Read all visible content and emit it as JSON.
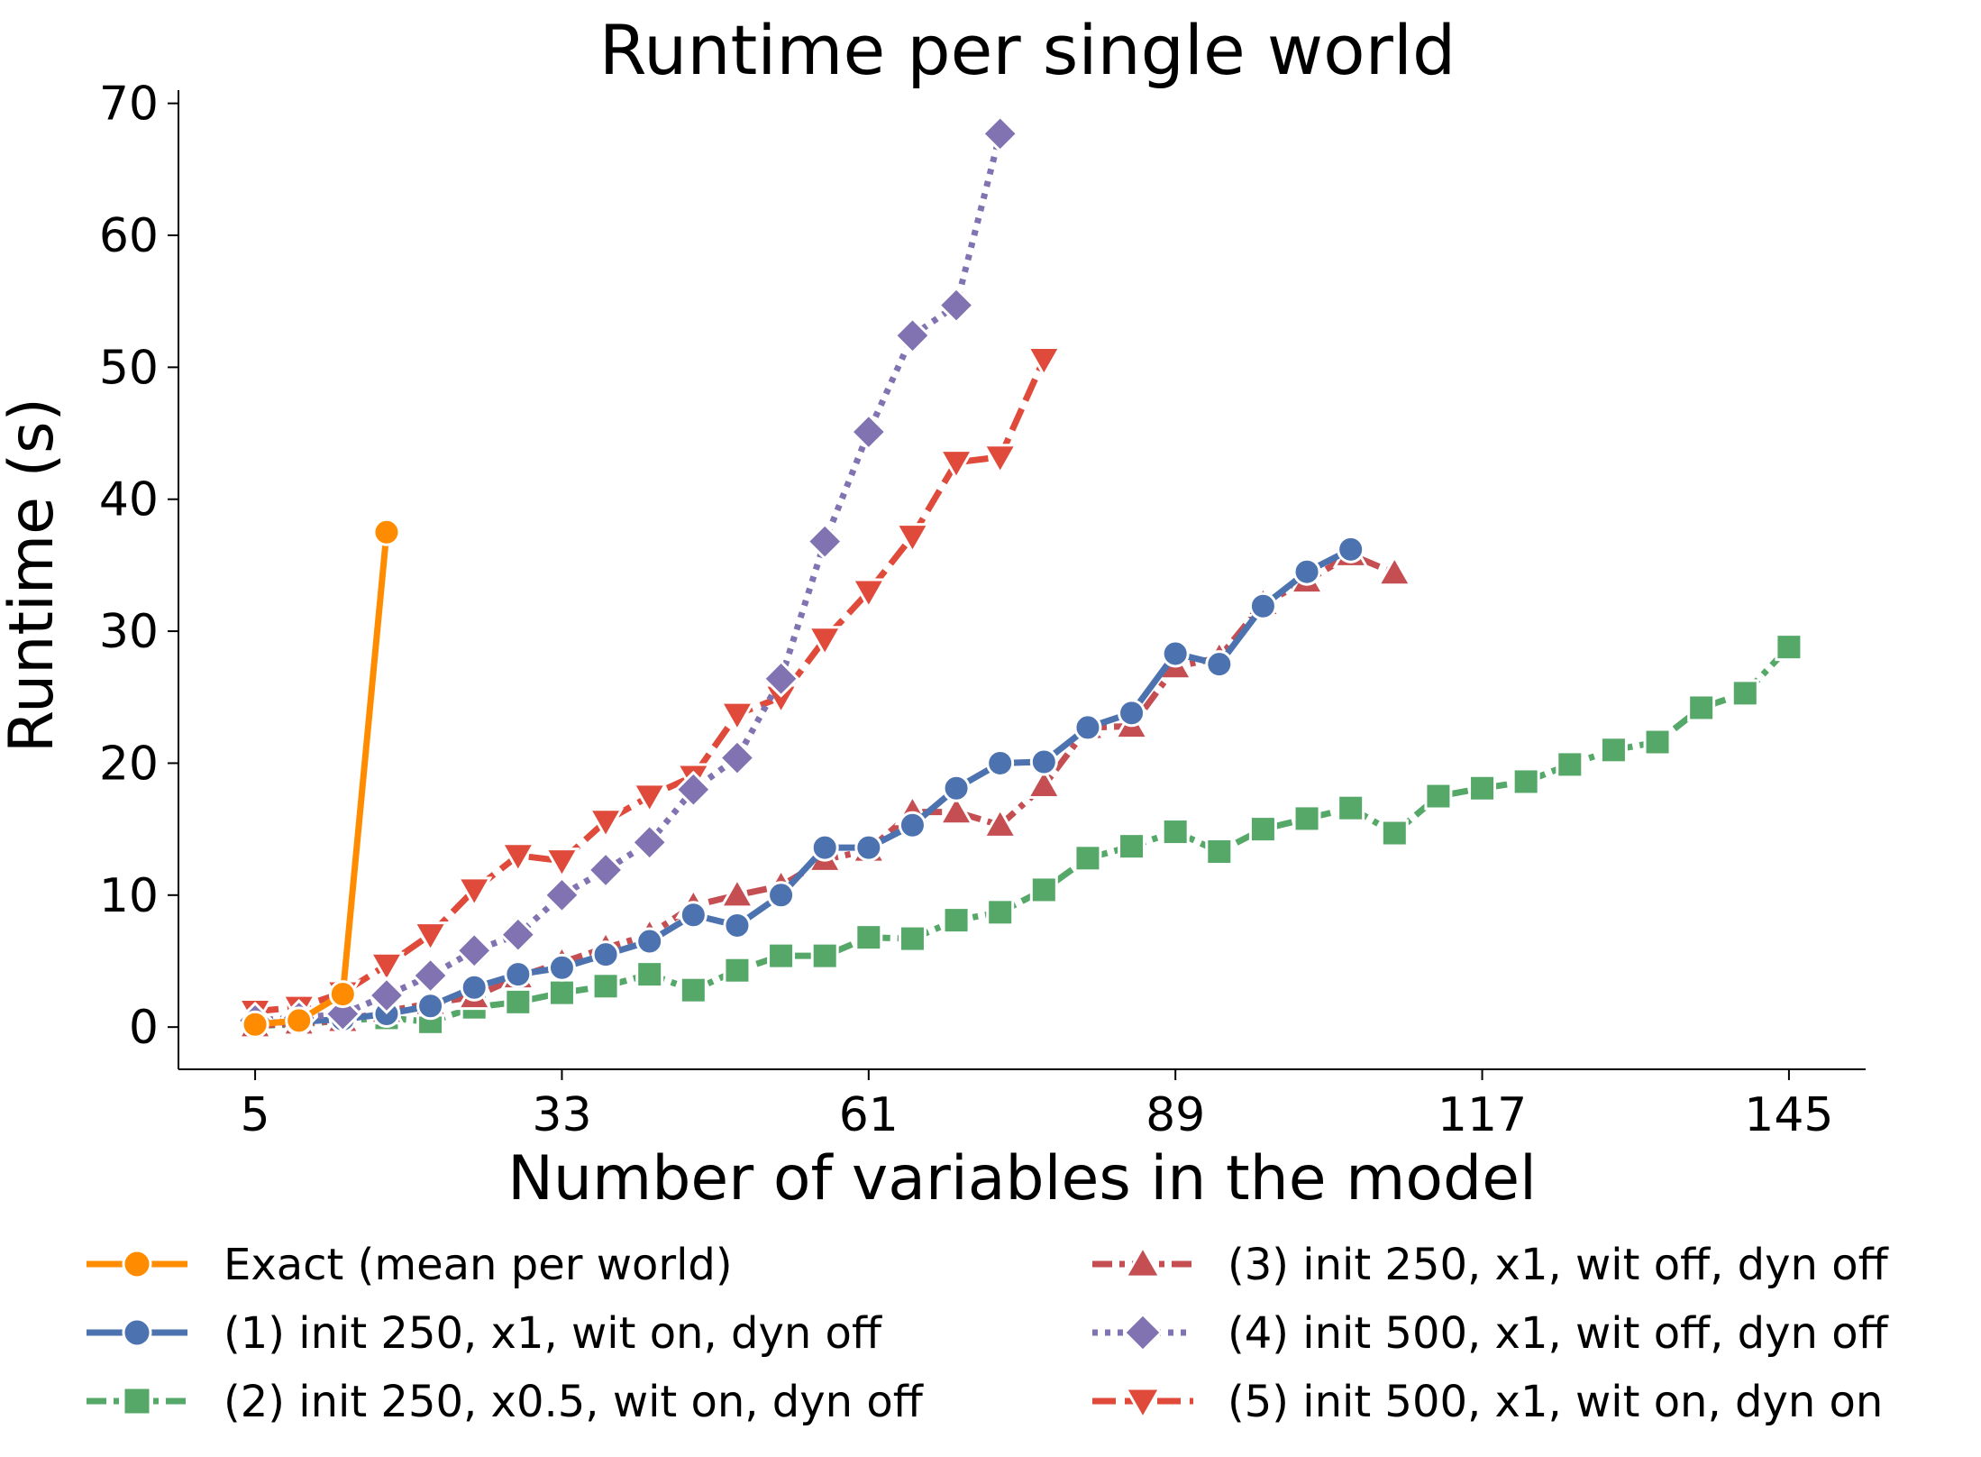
{
  "chart_data": {
    "type": "line",
    "title": "Runtime per single world",
    "xlabel": "Number of variables in the model",
    "ylabel": "Runtime (s)",
    "xticks": [
      "5",
      "33",
      "61",
      "89",
      "117",
      "145"
    ],
    "yticks": [
      "0",
      "10",
      "20",
      "30",
      "40",
      "50",
      "60",
      "70"
    ],
    "xlim": [
      -2,
      152
    ],
    "ylim": [
      -3.2,
      71
    ],
    "legend_placement": "below",
    "series": [
      {
        "name": "Exact (mean per world)",
        "color": "#ff8c00",
        "marker": "circle",
        "dash": "solid",
        "points": [
          [
            5,
            0.2
          ],
          [
            9,
            0.5
          ],
          [
            13,
            2.5
          ],
          [
            17,
            37.5
          ]
        ]
      },
      {
        "name": "(1) init 250, x1, wit on, dyn off",
        "color": "#4c72b0",
        "marker": "circle",
        "dash": "solid",
        "points": [
          [
            5,
            0.3
          ],
          [
            9,
            0.4
          ],
          [
            13,
            0.6
          ],
          [
            17,
            1.0
          ],
          [
            21,
            1.6
          ],
          [
            25,
            3.0
          ],
          [
            29,
            4.0
          ],
          [
            33,
            4.5
          ],
          [
            37,
            5.5
          ],
          [
            41,
            6.5
          ],
          [
            45,
            8.5
          ],
          [
            49,
            7.7
          ],
          [
            53,
            10.0
          ],
          [
            57,
            13.6
          ],
          [
            61,
            13.6
          ],
          [
            65,
            15.3
          ],
          [
            69,
            18.1
          ],
          [
            73,
            20.0
          ],
          [
            77,
            20.1
          ],
          [
            81,
            22.7
          ],
          [
            85,
            23.8
          ],
          [
            89,
            28.3
          ],
          [
            93,
            27.5
          ],
          [
            97,
            31.9
          ],
          [
            101,
            34.5
          ],
          [
            105,
            36.2
          ]
        ]
      },
      {
        "name": "(2) init 250, x0.5, wit on, dyn off",
        "color": "#55a868",
        "marker": "square",
        "dash": "dashdot",
        "points": [
          [
            5,
            0.1
          ],
          [
            9,
            0.2
          ],
          [
            13,
            0.5
          ],
          [
            17,
            0.7
          ],
          [
            21,
            0.4
          ],
          [
            25,
            1.5
          ],
          [
            29,
            1.9
          ],
          [
            33,
            2.6
          ],
          [
            37,
            3.1
          ],
          [
            41,
            4.0
          ],
          [
            45,
            2.8
          ],
          [
            49,
            4.3
          ],
          [
            53,
            5.4
          ],
          [
            57,
            5.4
          ],
          [
            61,
            6.8
          ],
          [
            65,
            6.7
          ],
          [
            69,
            8.1
          ],
          [
            73,
            8.7
          ],
          [
            77,
            10.4
          ],
          [
            81,
            12.8
          ],
          [
            85,
            13.7
          ],
          [
            89,
            14.8
          ],
          [
            93,
            13.3
          ],
          [
            97,
            15.0
          ],
          [
            101,
            15.8
          ],
          [
            105,
            16.6
          ],
          [
            109,
            14.7
          ],
          [
            113,
            17.5
          ],
          [
            117,
            18.1
          ],
          [
            121,
            18.6
          ],
          [
            125,
            19.9
          ],
          [
            129,
            21.0
          ],
          [
            133,
            21.6
          ],
          [
            137,
            24.2
          ],
          [
            141,
            25.3
          ],
          [
            145,
            28.8
          ]
        ]
      },
      {
        "name": "(3) init 250, x1, wit off, dyn off",
        "color": "#c44e52",
        "marker": "triangle-up",
        "dash": "dashdot",
        "points": [
          [
            5,
            0.1
          ],
          [
            9,
            0.3
          ],
          [
            13,
            0.5
          ],
          [
            17,
            1.2
          ],
          [
            21,
            1.8
          ],
          [
            25,
            2.3
          ],
          [
            29,
            3.8
          ],
          [
            33,
            4.9
          ],
          [
            37,
            6.0
          ],
          [
            41,
            7.0
          ],
          [
            45,
            9.2
          ],
          [
            49,
            10.0
          ],
          [
            53,
            10.7
          ],
          [
            57,
            12.7
          ],
          [
            61,
            13.4
          ],
          [
            65,
            16.3
          ],
          [
            69,
            16.3
          ],
          [
            73,
            15.3
          ],
          [
            77,
            18.3
          ],
          [
            81,
            22.7
          ],
          [
            85,
            22.8
          ],
          [
            89,
            27.3
          ],
          [
            93,
            28.0
          ],
          [
            97,
            32.1
          ],
          [
            101,
            33.8
          ],
          [
            105,
            35.8
          ],
          [
            109,
            34.4
          ]
        ]
      },
      {
        "name": "(4) init 500, x1, wit off, dyn off",
        "color": "#8172b2",
        "marker": "diamond",
        "dash": "dotted",
        "points": [
          [
            5,
            0.5
          ],
          [
            9,
            0.7
          ],
          [
            13,
            1.0
          ],
          [
            17,
            2.4
          ],
          [
            21,
            3.9
          ],
          [
            25,
            5.8
          ],
          [
            29,
            7.0
          ],
          [
            33,
            10.0
          ],
          [
            37,
            11.9
          ],
          [
            41,
            14.0
          ],
          [
            45,
            18.0
          ],
          [
            49,
            20.4
          ],
          [
            53,
            26.4
          ],
          [
            57,
            36.8
          ],
          [
            61,
            45.1
          ],
          [
            65,
            52.4
          ],
          [
            69,
            54.7
          ],
          [
            73,
            67.7
          ]
        ]
      },
      {
        "name": "(5) init 500, x1, wit on, dyn on",
        "color": "#e04a3a",
        "marker": "triangle-down",
        "dash": "dashed",
        "points": [
          [
            5,
            1.2
          ],
          [
            9,
            1.5
          ],
          [
            13,
            2.6
          ],
          [
            17,
            4.7
          ],
          [
            21,
            7.0
          ],
          [
            25,
            10.4
          ],
          [
            29,
            13.0
          ],
          [
            33,
            12.6
          ],
          [
            37,
            15.6
          ],
          [
            41,
            17.5
          ],
          [
            45,
            19.0
          ],
          [
            49,
            23.7
          ],
          [
            53,
            25.0
          ],
          [
            57,
            29.4
          ],
          [
            61,
            33.0
          ],
          [
            65,
            37.2
          ],
          [
            69,
            42.8
          ],
          [
            73,
            43.2
          ],
          [
            77,
            50.6
          ]
        ]
      }
    ]
  }
}
